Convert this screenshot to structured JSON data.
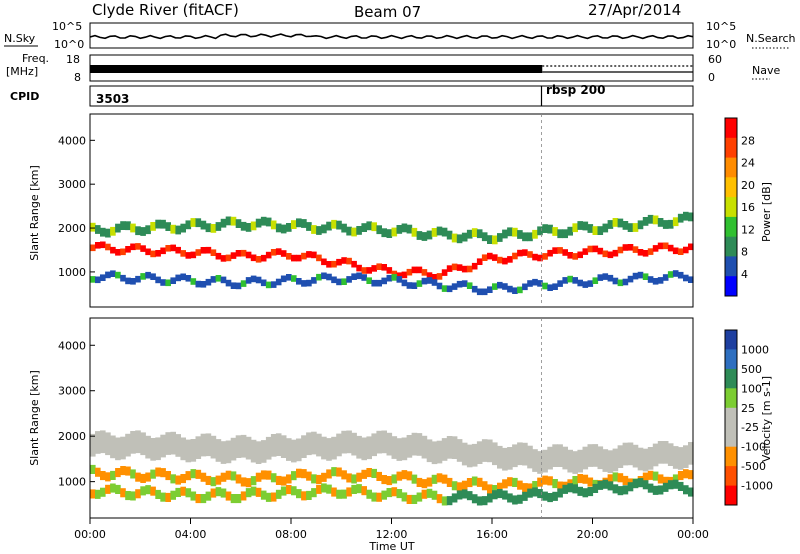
{
  "header": {
    "title": "Clyde River (fitACF)",
    "beam": "Beam 07",
    "date": "27/Apr/2014"
  },
  "summary": {
    "nsky_label": "N.Sky",
    "nsky_ticks": [
      "10^5",
      "10^0"
    ],
    "nsearch_label": "N.Search",
    "freq_label_1": "Freq.",
    "freq_label_2": "[MHz]",
    "freq_ticks": [
      "18",
      "8"
    ],
    "nave_label": "Nave",
    "nave_ticks": [
      "60",
      "0"
    ],
    "cpid_label": "CPID",
    "cpid_segments": [
      {
        "id": "3503",
        "start_hour": 0
      },
      {
        "id": "rbsp 200",
        "start_hour": 18
      }
    ]
  },
  "chart_data": [
    {
      "type": "heatmap",
      "name": "Power",
      "ylabel": "Slant Range [km]",
      "xlabel": "",
      "ylim": [
        200,
        4600
      ],
      "xlim_hours": [
        0,
        24
      ],
      "yticks": [
        1000,
        2000,
        3000,
        4000
      ],
      "colorbar": {
        "label": "Power [dB]",
        "ticks": [
          "28",
          "24",
          "20",
          "16",
          "12",
          "8",
          "4"
        ],
        "colors": [
          "#ff0000",
          "#ff4000",
          "#ff8c00",
          "#ffc000",
          "#c8e000",
          "#30c030",
          "#2e8b57",
          "#1f4fb0",
          "#0000ff"
        ]
      },
      "bands": [
        {
          "label": "main",
          "centers_km": [
            1550,
            1500,
            1450,
            1350,
            1400,
            1200,
            1000,
            950,
            1300,
            1400,
            1450,
            1500,
            1550
          ],
          "width_km": 150
        },
        {
          "label": "upper",
          "centers_km": [
            1950,
            2000,
            2050,
            2100,
            2050,
            2000,
            1950,
            1850,
            1800,
            1900,
            2000,
            2100,
            2200
          ],
          "width_km": 200
        },
        {
          "label": "lower",
          "centers_km": [
            900,
            850,
            800,
            750,
            800,
            850,
            800,
            700,
            600,
            700,
            800,
            850,
            900
          ],
          "width_km": 150
        }
      ]
    },
    {
      "type": "heatmap",
      "name": "Velocity",
      "ylabel": "Slant Range [km]",
      "xlabel": "Time UT",
      "ylim": [
        200,
        4600
      ],
      "xlim_hours": [
        0,
        24
      ],
      "yticks": [
        1000,
        2000,
        3000,
        4000
      ],
      "xticks": [
        "00:00",
        "04:00",
        "08:00",
        "12:00",
        "16:00",
        "20:00",
        "00:00"
      ],
      "colorbar": {
        "label": "Velocity [m s-1]",
        "ticks": [
          "1000",
          "500",
          "100",
          "25",
          "-25",
          "-100",
          "-500",
          "-1000"
        ],
        "colors": [
          "#1e3fa0",
          "#2e6fc0",
          "#2e8b57",
          "#7ccd32",
          "#c0c0b8",
          "#c0c0b8",
          "#ff9000",
          "#ff5000",
          "#ff0000"
        ]
      },
      "bands": [
        {
          "label": "ground-scatter",
          "centers_km": [
            1800,
            1800,
            1750,
            1700,
            1750,
            1800,
            1800,
            1700,
            1600,
            1500,
            1500,
            1550,
            1600
          ],
          "width_km": 500
        },
        {
          "label": "negative",
          "centers_km": [
            1200,
            1150,
            1100,
            1050,
            1100,
            1150,
            1100,
            1000,
            900,
            950,
            1000,
            1050,
            1100
          ],
          "width_km": 200
        },
        {
          "label": "positive",
          "centers_km": [
            800,
            750,
            700,
            700,
            750,
            800,
            700,
            650,
            650,
            700,
            850,
            900,
            850
          ],
          "width_km": 200
        }
      ]
    }
  ]
}
